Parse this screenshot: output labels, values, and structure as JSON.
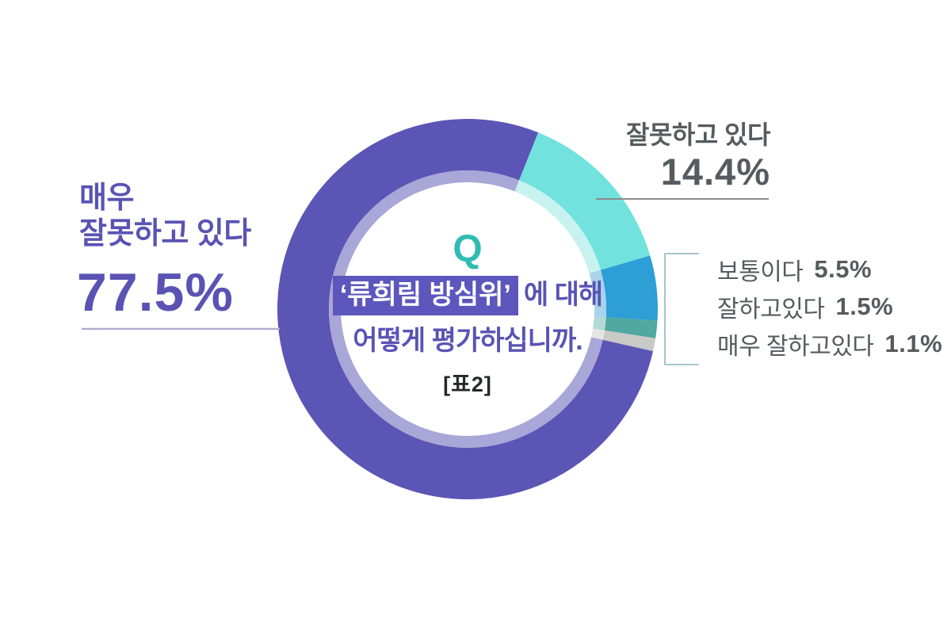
{
  "colors": {
    "purple": "#5a53b4",
    "purple_box": "#5c56bd",
    "teal_q": "#30bcb2",
    "dark_text": "#555b5e",
    "table_ref_text": "#25282b",
    "leader_line_gray": "#8b8b8b",
    "leader_line_lavender": "#b1aed2",
    "bracket": "#a5c5cd"
  },
  "chart_data": {
    "type": "pie",
    "variant": "donut",
    "title": "‘류희림 방심위’에 대해 어떻게 평가하십니까.",
    "table_ref": "[표2]",
    "start_angle_deg": 21.8,
    "geometry_note": "clockwise from 21.8deg past 12 o'clock; outer ring r175-240, lighter inner ring r160-175, white hole r160, center (590,390)",
    "segments": [
      {
        "label": "잘못하고 있다",
        "value": 14.4,
        "color": "#72e2df",
        "inner_color": "#c7f2ef"
      },
      {
        "label": "보통이다",
        "value": 5.5,
        "color": "#2d9ed6",
        "inner_color": "#a9d3ea"
      },
      {
        "label": "잘하고있다",
        "value": 1.5,
        "color": "#50a8a1",
        "inner_color": "#b3d9d4"
      },
      {
        "label": "매우 잘하고있다",
        "value": 1.1,
        "color": "#c9c9c8",
        "inner_color": "#e5e5e4"
      },
      {
        "label": "매우 잘못하고 있다",
        "value": 77.5,
        "color": "#5b55b5",
        "inner_color": "#a9a6d8"
      }
    ]
  },
  "center": {
    "q_mark": "Q",
    "title_highlight": "‘류희림 방심위’",
    "title_after": "에 대해",
    "title_line2": "어떻게 평가하십니까.",
    "table_ref": "[표2]"
  },
  "callouts": {
    "primary": {
      "label": "매우\n잘못하고 있다",
      "value": "77.5%"
    },
    "secondary": {
      "label": "잘못하고 있다",
      "value": "14.4%"
    },
    "minor": [
      {
        "label": "보통이다",
        "value": "5.5%"
      },
      {
        "label": "잘하고있다",
        "value": "1.5%"
      },
      {
        "label": "매우 잘하고있다",
        "value": "1.1%"
      }
    ]
  }
}
